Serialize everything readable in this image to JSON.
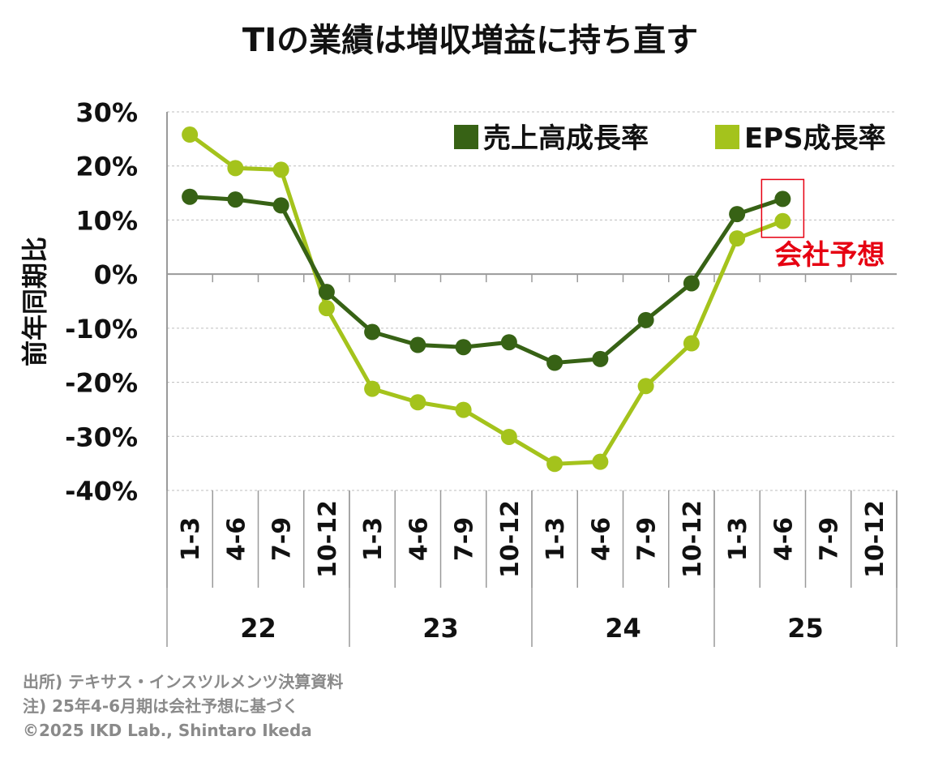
{
  "chart_data": {
    "type": "line",
    "title": "TIの業績は増収増益に持ち直す",
    "ylabel": "前年同期比",
    "ylim": [
      -40,
      30
    ],
    "yticks": [
      30,
      20,
      10,
      0,
      -10,
      -20,
      -30,
      -40
    ],
    "ytick_labels": [
      "30%",
      "20%",
      "10%",
      "0%",
      "-10%",
      "-20%",
      "-30%",
      "-40%"
    ],
    "grid": true,
    "legend_position": "top-right",
    "categories": [
      "1-3",
      "4-6",
      "7-9",
      "10-12",
      "1-3",
      "4-6",
      "7-9",
      "10-12",
      "1-3",
      "4-6",
      "7-9",
      "10-12",
      "1-3",
      "4-6",
      "7-9",
      "10-12"
    ],
    "year_groups": [
      {
        "label": "22",
        "span": 4
      },
      {
        "label": "23",
        "span": 4
      },
      {
        "label": "24",
        "span": 4
      },
      {
        "label": "25",
        "span": 4
      }
    ],
    "series": [
      {
        "name": "売上高成長率",
        "color": "#376215",
        "values": [
          14.3,
          13.8,
          12.7,
          -3.3,
          -10.7,
          -13.1,
          -13.5,
          -12.6,
          -16.4,
          -15.7,
          -8.5,
          -1.7,
          11.1,
          13.9,
          null,
          null
        ]
      },
      {
        "name": "EPS成長率",
        "color": "#a4c31c",
        "values": [
          25.8,
          19.6,
          19.3,
          -6.3,
          -21.2,
          -23.7,
          -25.1,
          -30.1,
          -35.1,
          -34.7,
          -20.7,
          -12.8,
          6.6,
          9.8,
          null,
          null
        ]
      }
    ],
    "annotation": {
      "text": "会社予想",
      "color": "#e60012",
      "category_index": 13
    }
  },
  "footer": {
    "source": "出所) テキサス・インスツルメンツ決算資料",
    "note": "注) 25年4-6月期は会社予想に基づく",
    "copyright": "©2025 IKD Lab., Shintaro Ikeda"
  }
}
